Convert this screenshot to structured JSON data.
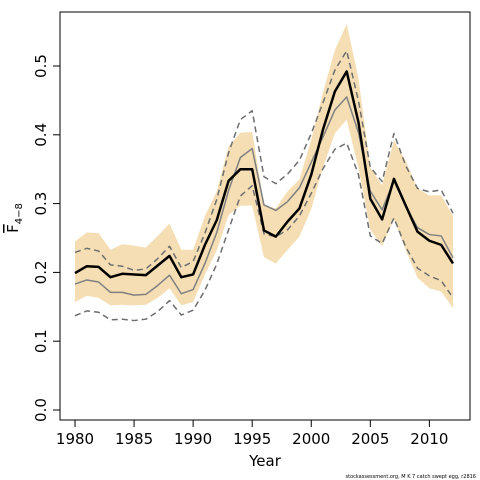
{
  "chart_data": {
    "type": "line",
    "xlabel": "Year",
    "ylabel": "F",
    "ylabel_subscript": "4−8",
    "credit": "stockassessment.org, M K 7 catch swept egg, r2816",
    "xlim": [
      1980,
      2012
    ],
    "ylim": [
      0,
      0.5
    ],
    "x_ticks": [
      1980,
      1985,
      1990,
      1995,
      2000,
      2005,
      2010
    ],
    "y_ticks": [
      0.0,
      0.1,
      0.2,
      0.3,
      0.4,
      0.5
    ],
    "x_tick_labels": [
      "1980",
      "1985",
      "1990",
      "1995",
      "2000",
      "2005",
      "2010"
    ],
    "y_tick_labels": [
      "0.0",
      "0.1",
      "0.2",
      "0.3",
      "0.4",
      "0.5"
    ],
    "colors": {
      "band": "#f5deb3",
      "estimate": "#000000",
      "alt_estimate": "#808080",
      "alt_bounds": "#6e6e6e"
    },
    "x": [
      1980,
      1981,
      1982,
      1983,
      1984,
      1985,
      1986,
      1987,
      1988,
      1989,
      1990,
      1991,
      1992,
      1993,
      1994,
      1995,
      1996,
      1997,
      1998,
      1999,
      2000,
      2001,
      2002,
      2003,
      2004,
      2005,
      2006,
      2007,
      2008,
      2009,
      2010,
      2011,
      2012
    ],
    "series": [
      {
        "role": "band",
        "lower": [
          0.157,
          0.166,
          0.163,
          0.152,
          0.153,
          0.152,
          0.153,
          0.163,
          0.177,
          0.152,
          0.157,
          0.197,
          0.232,
          0.283,
          0.297,
          0.297,
          0.222,
          0.213,
          0.233,
          0.252,
          0.292,
          0.353,
          0.402,
          0.422,
          0.352,
          0.262,
          0.238,
          0.277,
          0.232,
          0.192,
          0.177,
          0.172,
          0.148
        ],
        "upper": [
          0.245,
          0.258,
          0.257,
          0.233,
          0.241,
          0.239,
          0.236,
          0.253,
          0.271,
          0.233,
          0.233,
          0.282,
          0.318,
          0.383,
          0.403,
          0.404,
          0.298,
          0.293,
          0.318,
          0.335,
          0.393,
          0.462,
          0.523,
          0.561,
          0.482,
          0.352,
          0.327,
          0.392,
          0.362,
          0.322,
          0.312,
          0.312,
          0.282
        ]
      },
      {
        "role": "estimate",
        "values": [
          0.199,
          0.209,
          0.208,
          0.193,
          0.198,
          0.197,
          0.196,
          0.21,
          0.224,
          0.193,
          0.197,
          0.24,
          0.276,
          0.333,
          0.35,
          0.35,
          0.261,
          0.252,
          0.274,
          0.293,
          0.342,
          0.408,
          0.463,
          0.492,
          0.418,
          0.307,
          0.277,
          0.336,
          0.297,
          0.259,
          0.246,
          0.24,
          0.213
        ]
      },
      {
        "role": "alt_estimate",
        "values": [
          0.183,
          0.189,
          0.186,
          0.171,
          0.171,
          0.167,
          0.168,
          0.181,
          0.196,
          0.169,
          0.175,
          0.213,
          0.258,
          0.319,
          0.367,
          0.38,
          0.298,
          0.29,
          0.303,
          0.323,
          0.36,
          0.397,
          0.436,
          0.455,
          0.403,
          0.318,
          0.291,
          0.333,
          0.296,
          0.265,
          0.255,
          0.253,
          0.221
        ]
      },
      {
        "role": "alt_upper",
        "values": [
          0.229,
          0.235,
          0.231,
          0.211,
          0.209,
          0.203,
          0.205,
          0.22,
          0.238,
          0.207,
          0.216,
          0.257,
          0.306,
          0.374,
          0.422,
          0.435,
          0.339,
          0.329,
          0.343,
          0.363,
          0.402,
          0.447,
          0.494,
          0.522,
          0.449,
          0.353,
          0.332,
          0.402,
          0.355,
          0.322,
          0.317,
          0.32,
          0.286
        ]
      },
      {
        "role": "alt_lower",
        "values": [
          0.137,
          0.144,
          0.142,
          0.131,
          0.132,
          0.13,
          0.132,
          0.143,
          0.159,
          0.138,
          0.145,
          0.174,
          0.212,
          0.262,
          0.311,
          0.326,
          0.256,
          0.252,
          0.262,
          0.282,
          0.315,
          0.351,
          0.379,
          0.388,
          0.342,
          0.253,
          0.242,
          0.279,
          0.237,
          0.206,
          0.195,
          0.188,
          0.163
        ]
      }
    ]
  }
}
